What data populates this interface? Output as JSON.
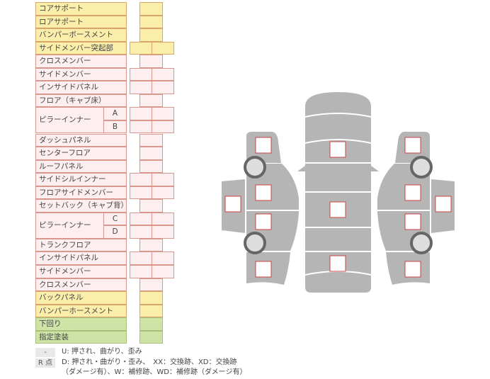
{
  "rows": [
    {
      "label": "コアサポート",
      "color": "yellow",
      "cells": 1
    },
    {
      "label": "ロアサポート",
      "color": "yellow",
      "cells": 1
    },
    {
      "label": "バンパーボースメント",
      "color": "yellow",
      "cells": 1
    },
    {
      "label": "サイドメンバー突起部",
      "color": "yellow",
      "cells": 2
    },
    {
      "label": "クロスメンバー",
      "color": "pink",
      "cells": 1
    },
    {
      "label": "サイドメンバー",
      "color": "pink",
      "cells": 2
    },
    {
      "label": "インサイドパネル",
      "color": "pink",
      "cells": 2
    },
    {
      "label": "フロア（キャブ床）",
      "color": "pink",
      "cells": 1
    },
    {
      "label": "ピラーインナー",
      "sub": [
        "A",
        "B"
      ],
      "color": "pink",
      "cells": 2
    },
    {
      "label": "ダッシュパネル",
      "color": "pink",
      "cells": 1
    },
    {
      "label": "センターフロア",
      "color": "pink",
      "cells": 1
    },
    {
      "label": "ルーフパネル",
      "color": "pink",
      "cells": 1
    },
    {
      "label": "サイドシルインナー",
      "color": "pink",
      "cells": 2
    },
    {
      "label": "フロアサイドメンバー",
      "color": "pink",
      "cells": 2
    },
    {
      "label": "セットバック（キャブ背）",
      "color": "pink",
      "cells": 1
    },
    {
      "label": "ピラーインナー",
      "sub": [
        "C",
        "D"
      ],
      "color": "pink",
      "cells": 2
    },
    {
      "label": "トランクフロア",
      "color": "pink",
      "cells": 1
    },
    {
      "label": "インサイドパネル",
      "color": "pink",
      "cells": 2
    },
    {
      "label": "サイドメンバー",
      "color": "pink",
      "cells": 2
    },
    {
      "label": "クロスメンバー",
      "color": "pink",
      "cells": 1
    },
    {
      "label": "バックパネル",
      "color": "yellow",
      "cells": 1
    },
    {
      "label": "バンパーホースメント",
      "color": "yellow",
      "cells": 1
    },
    {
      "label": "下回り",
      "color": "green",
      "cells": 1
    },
    {
      "label": "指定塗装",
      "color": "green",
      "cells": 1
    }
  ],
  "legend": [
    {
      "key": "-",
      "text": "U: 押され、曲がり、歪み"
    },
    {
      "key": "R 点",
      "text": "D: 押され・曲がり・歪み、　XX：交換跡、XD：交換跡",
      "text2": "（ダメージ有）、W：補修跡、WD：補修跡（ダメージ有）"
    }
  ],
  "colors": {
    "yellow": "#fbeeaa",
    "pink": "#fdeef0",
    "green": "#cfe3a6",
    "body": "#b3b3b3",
    "mark_border": "#cc4444"
  }
}
